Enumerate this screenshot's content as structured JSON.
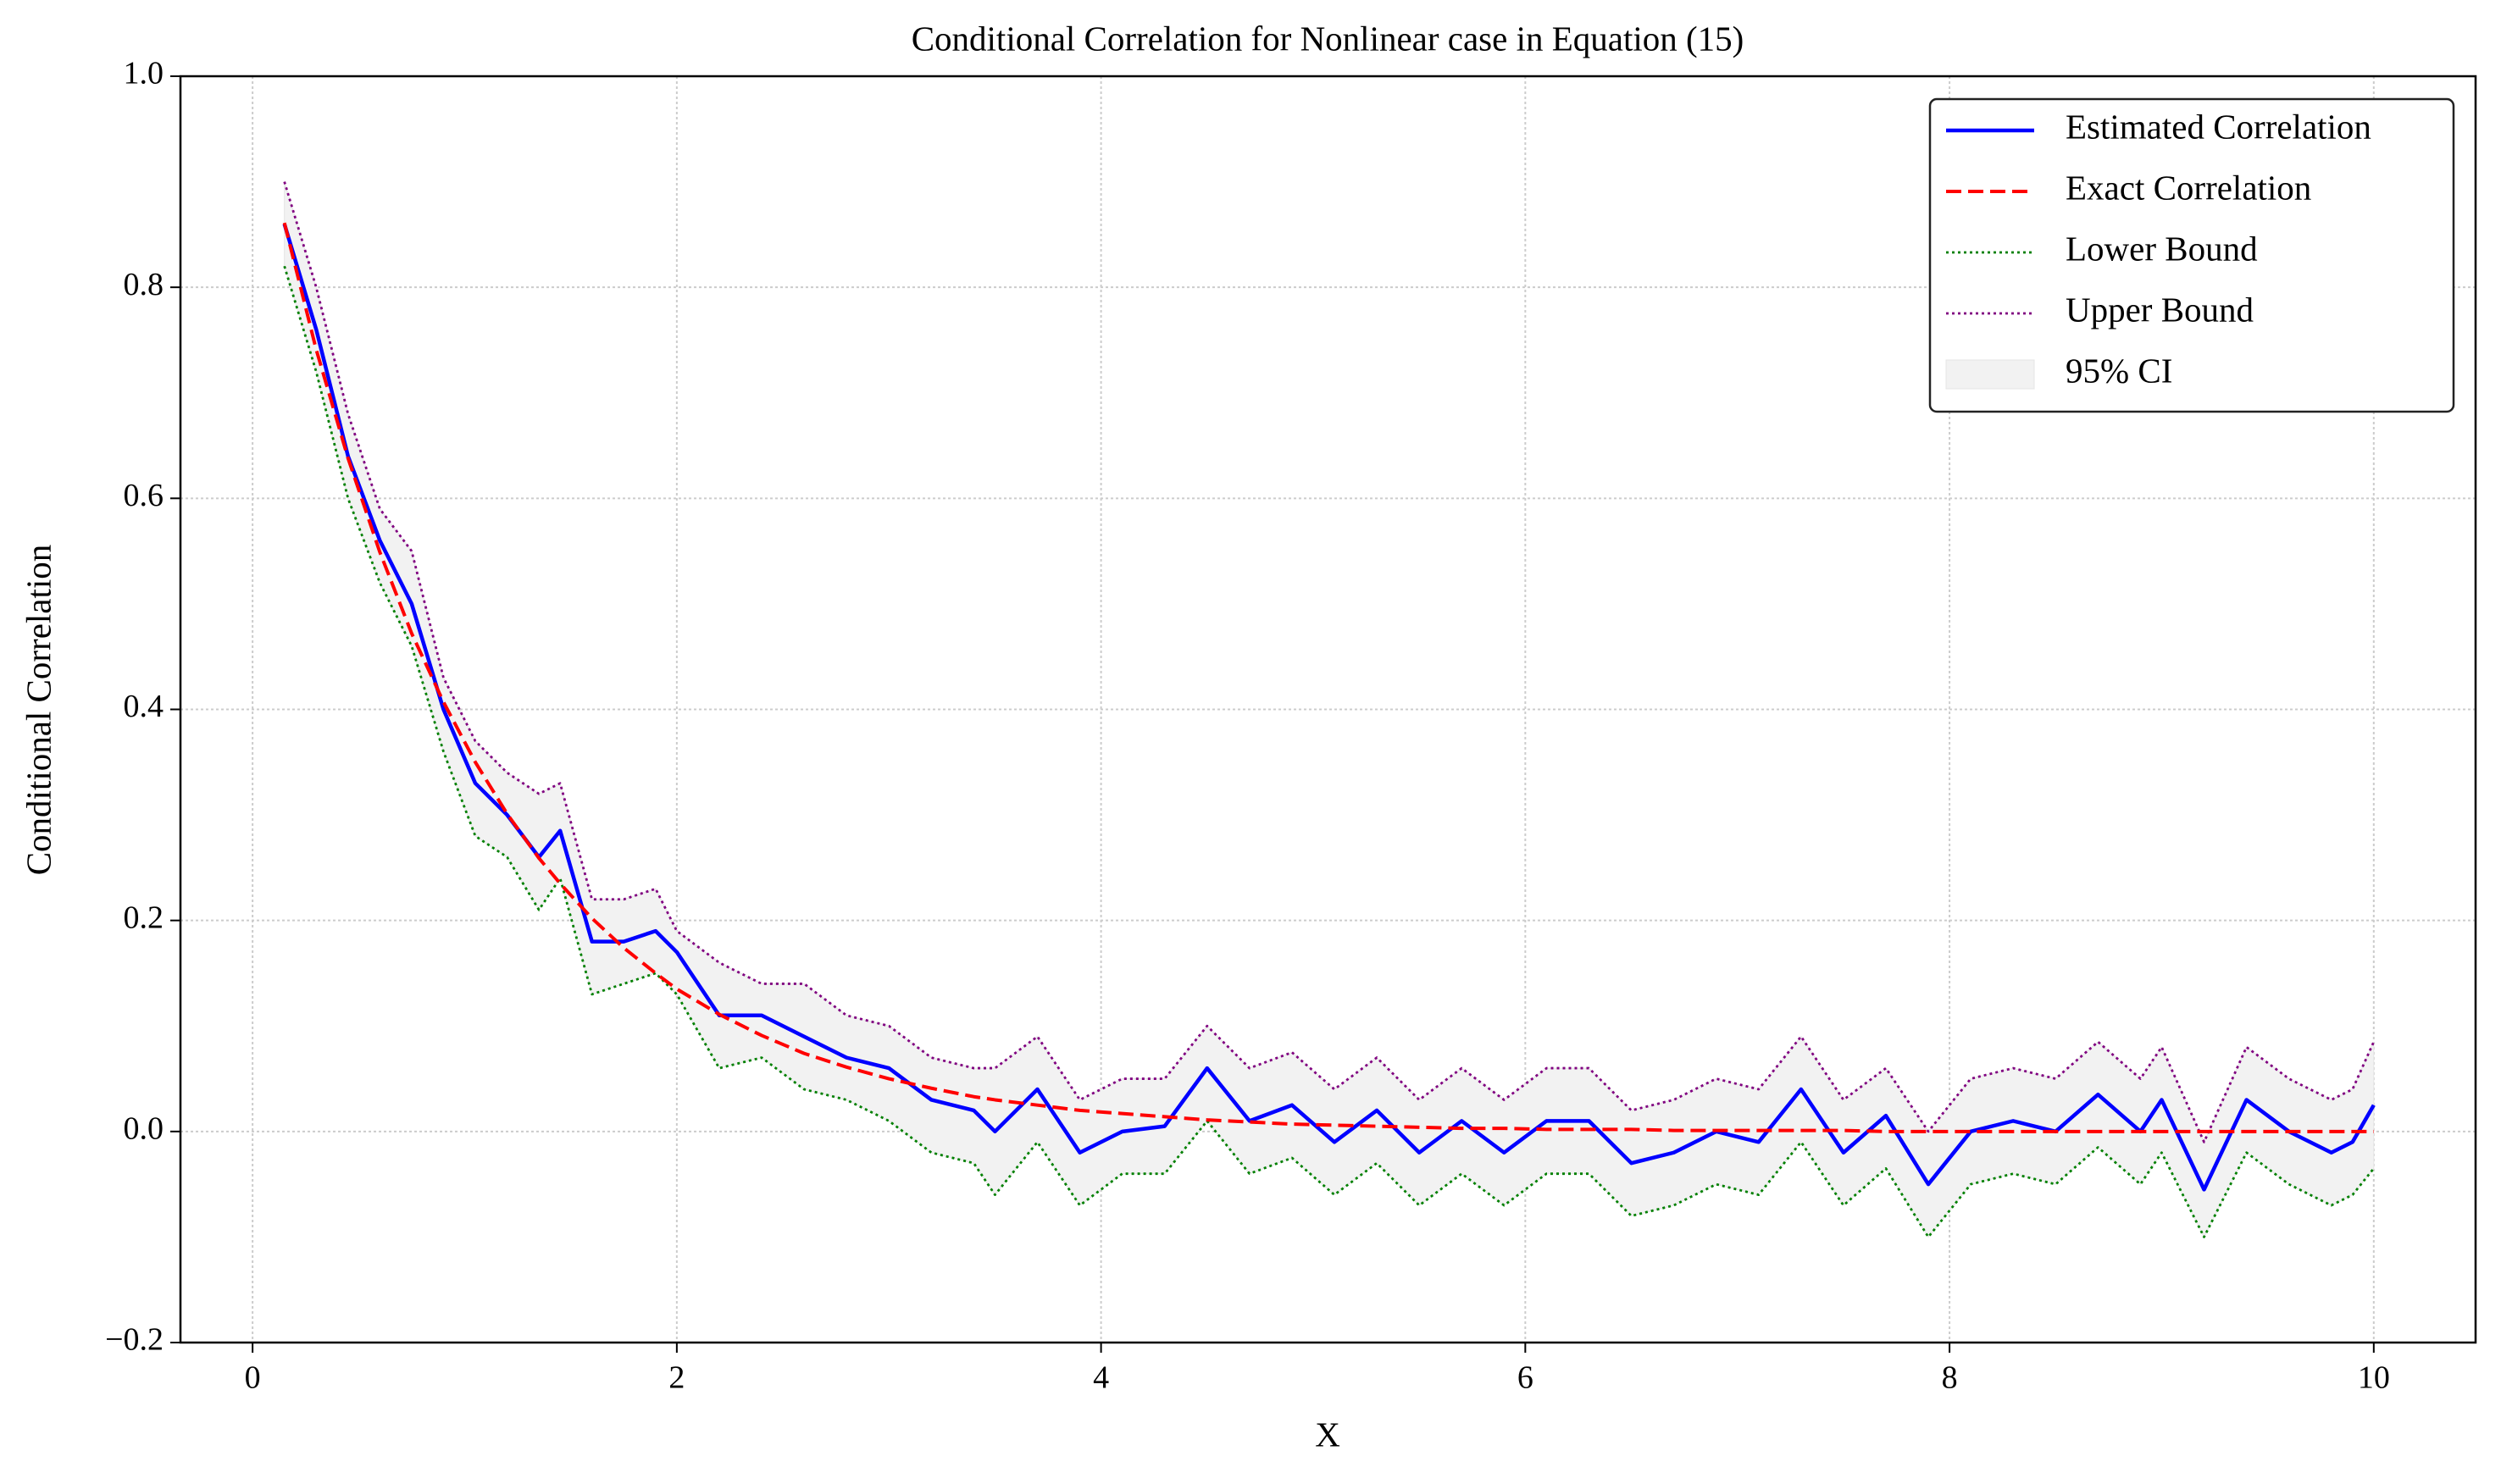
{
  "chart_data": {
    "type": "line",
    "title": "Conditional Correlation for Nonlinear case in Equation (15)",
    "xlabel": "X",
    "ylabel": "Conditional Correlation",
    "x": [
      0.15,
      0.3,
      0.45,
      0.6,
      0.75,
      0.9,
      1.05,
      1.2,
      1.35,
      1.45,
      1.6,
      1.75,
      1.9,
      2.0,
      2.2,
      2.4,
      2.6,
      2.8,
      3.0,
      3.2,
      3.4,
      3.5,
      3.7,
      3.9,
      4.1,
      4.3,
      4.5,
      4.7,
      4.9,
      5.1,
      5.3,
      5.5,
      5.7,
      5.9,
      6.1,
      6.3,
      6.5,
      6.7,
      6.9,
      7.1,
      7.3,
      7.5,
      7.7,
      7.9,
      8.1,
      8.3,
      8.5,
      8.7,
      8.9,
      9.0,
      9.2,
      9.4,
      9.6,
      9.8,
      9.9,
      10.0
    ],
    "series": [
      {
        "name": "Estimated Correlation",
        "color": "#0000ff",
        "style": "solid",
        "values": [
          0.86,
          0.76,
          0.64,
          0.56,
          0.5,
          0.4,
          0.33,
          0.3,
          0.26,
          0.285,
          0.18,
          0.18,
          0.19,
          0.17,
          0.11,
          0.11,
          0.09,
          0.07,
          0.06,
          0.03,
          0.02,
          0.0,
          0.04,
          -0.02,
          0.0,
          0.005,
          0.06,
          0.01,
          0.025,
          -0.01,
          0.02,
          -0.02,
          0.01,
          -0.02,
          0.01,
          0.01,
          -0.03,
          -0.02,
          0.0,
          -0.01,
          0.04,
          -0.02,
          0.015,
          -0.05,
          0.0,
          0.01,
          0.0,
          0.035,
          0.0,
          0.03,
          -0.055,
          0.03,
          0.0,
          -0.02,
          -0.01,
          0.025
        ]
      },
      {
        "name": "Exact Correlation",
        "color": "#ff0000",
        "style": "dashed",
        "values": [
          0.861,
          0.741,
          0.638,
          0.549,
          0.472,
          0.407,
          0.35,
          0.301,
          0.259,
          0.235,
          0.202,
          0.174,
          0.15,
          0.135,
          0.111,
          0.091,
          0.074,
          0.061,
          0.05,
          0.041,
          0.033,
          0.03,
          0.025,
          0.02,
          0.017,
          0.014,
          0.011,
          0.009,
          0.007,
          0.006,
          0.005,
          0.004,
          0.003,
          0.003,
          0.002,
          0.002,
          0.002,
          0.001,
          0.001,
          0.001,
          0.001,
          0.001,
          0,
          0,
          0,
          0,
          0,
          0,
          0,
          0,
          0,
          0,
          0,
          0,
          0,
          0
        ]
      },
      {
        "name": "Lower Bound",
        "color": "#008000",
        "style": "dotted",
        "values": [
          0.82,
          0.72,
          0.6,
          0.52,
          0.46,
          0.36,
          0.28,
          0.26,
          0.21,
          0.24,
          0.13,
          0.14,
          0.15,
          0.13,
          0.06,
          0.07,
          0.04,
          0.03,
          0.01,
          -0.02,
          -0.03,
          -0.06,
          -0.01,
          -0.07,
          -0.04,
          -0.04,
          0.01,
          -0.04,
          -0.025,
          -0.06,
          -0.03,
          -0.07,
          -0.04,
          -0.07,
          -0.04,
          -0.04,
          -0.08,
          -0.07,
          -0.05,
          -0.06,
          -0.01,
          -0.07,
          -0.035,
          -0.1,
          -0.05,
          -0.04,
          -0.05,
          -0.015,
          -0.05,
          -0.02,
          -0.1,
          -0.02,
          -0.05,
          -0.07,
          -0.06,
          -0.035
        ]
      },
      {
        "name": "Upper Bound",
        "color": "#800080",
        "style": "dotted",
        "values": [
          0.9,
          0.8,
          0.68,
          0.59,
          0.55,
          0.43,
          0.37,
          0.34,
          0.32,
          0.33,
          0.22,
          0.22,
          0.23,
          0.19,
          0.16,
          0.14,
          0.14,
          0.11,
          0.1,
          0.07,
          0.06,
          0.06,
          0.09,
          0.03,
          0.05,
          0.05,
          0.1,
          0.06,
          0.075,
          0.04,
          0.07,
          0.03,
          0.06,
          0.03,
          0.06,
          0.06,
          0.02,
          0.03,
          0.05,
          0.04,
          0.09,
          0.03,
          0.06,
          0.0,
          0.05,
          0.06,
          0.05,
          0.085,
          0.05,
          0.08,
          -0.01,
          0.08,
          0.05,
          0.03,
          0.04,
          0.085
        ]
      }
    ],
    "band": {
      "name": "95% CI",
      "color": "#f2f2f2"
    },
    "xlim": [
      -0.34,
      10.48
    ],
    "ylim": [
      -0.2,
      1.0
    ],
    "xticks": [
      0,
      2,
      4,
      6,
      8,
      10
    ],
    "yticks": [
      {
        "value": -0.2,
        "label": "−0.2"
      },
      {
        "value": 0,
        "label": "0.0"
      },
      0.2,
      0.4,
      0.6,
      0.8,
      {
        "value": 1.0,
        "label": "1.0"
      }
    ],
    "grid": true,
    "legend": "upper right"
  }
}
